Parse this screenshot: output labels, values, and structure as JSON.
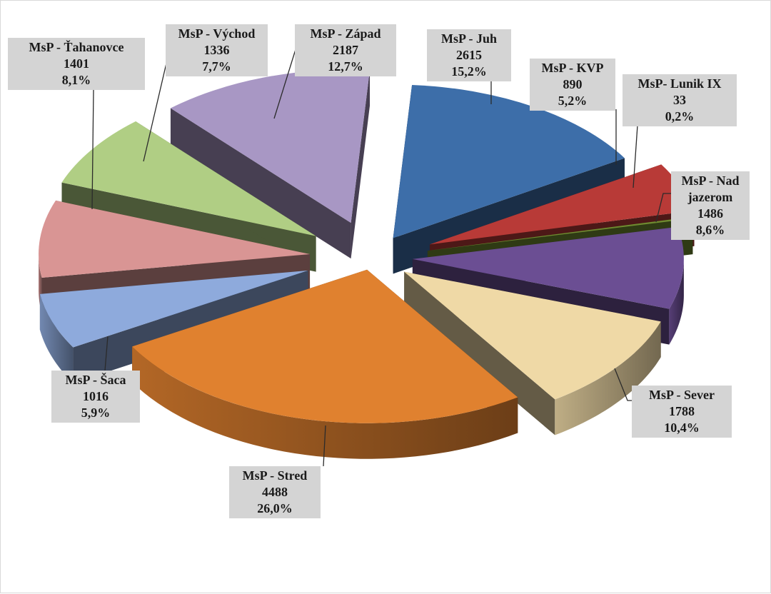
{
  "chart_data": {
    "type": "pie",
    "title": "",
    "exploded_3d": true,
    "slices": [
      {
        "label": "MsP - Juh",
        "value": 2615,
        "percent": "15,2%",
        "color": "#3d6ea9"
      },
      {
        "label": "MsP - KVP",
        "value": 890,
        "percent": "5,2%",
        "color": "#b83a37"
      },
      {
        "label": "MsP- Lunik IX",
        "value": 33,
        "percent": "0,2%",
        "color": "#6f8a30"
      },
      {
        "label": "MsP - Nad jazerom",
        "label_lines": [
          "MsP - Nad",
          "jazerom"
        ],
        "value": 1486,
        "percent": "8,6%",
        "color": "#6b4e93"
      },
      {
        "label": "MsP - Sever",
        "value": 1788,
        "percent": "10,4%",
        "color": "#efd9a6"
      },
      {
        "label": "MsP - Stred",
        "value": 4488,
        "percent": "26,0%",
        "color": "#e0812f"
      },
      {
        "label": "MsP - Šaca",
        "value": 1016,
        "percent": "5,9%",
        "color": "#8eaadc"
      },
      {
        "label": "MsP - Ťahanovce",
        "value": 1401,
        "percent": "8,1%",
        "color": "#d99594"
      },
      {
        "label": "MsP - Východ",
        "value": 1336,
        "percent": "7,7%",
        "color": "#b0ce84"
      },
      {
        "label": "MsP - Západ",
        "value": 2187,
        "percent": "12,7%",
        "color": "#a897c4"
      }
    ]
  }
}
